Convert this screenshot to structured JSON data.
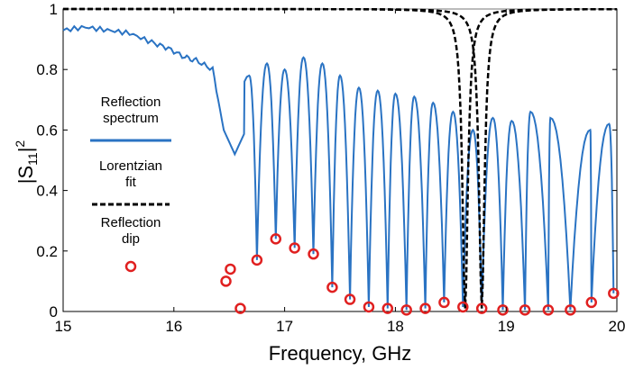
{
  "chart_data": {
    "type": "line",
    "xlabel": "Frequency, GHz",
    "ylabel": {
      "main": "|S",
      "sub": "11",
      "end": "|",
      "sup": "2"
    },
    "xlim": [
      15,
      20
    ],
    "ylim": [
      0,
      1
    ],
    "xticks": [
      "15",
      "16",
      "17",
      "18",
      "19",
      "20"
    ],
    "yticks": [
      "0",
      "0.2",
      "0.4",
      "0.6",
      "0.8",
      "1"
    ],
    "grid": false,
    "legend_position": "left",
    "colors": {
      "reflection": "#2a73c3",
      "lorentzian": "#000000",
      "dip": "#e02020"
    },
    "legend": [
      {
        "lines": [
          "Reflection",
          "spectrum"
        ],
        "style": "solid"
      },
      {
        "lines": [
          "Lorentzian",
          "fit"
        ],
        "style": "dashed"
      },
      {
        "lines": [
          "Reflection",
          "dip"
        ],
        "style": "marker"
      }
    ],
    "reflection_spectrum": {
      "baseline": [
        [
          15.0,
          0.93
        ],
        [
          15.2,
          0.94
        ],
        [
          15.4,
          0.93
        ],
        [
          15.6,
          0.92
        ],
        [
          15.8,
          0.89
        ],
        [
          15.95,
          0.87
        ],
        [
          16.1,
          0.84
        ],
        [
          16.2,
          0.83
        ],
        [
          16.35,
          0.8
        ],
        [
          16.45,
          0.6
        ],
        [
          16.55,
          0.52
        ],
        [
          16.65,
          0.6
        ]
      ],
      "peaks": [
        [
          16.3,
          0.84
        ],
        [
          16.68,
          0.78
        ],
        [
          16.84,
          0.82
        ],
        [
          17.0,
          0.8
        ],
        [
          17.17,
          0.84
        ],
        [
          17.34,
          0.82
        ],
        [
          17.5,
          0.78
        ],
        [
          17.67,
          0.74
        ],
        [
          17.84,
          0.73
        ],
        [
          18.0,
          0.72
        ],
        [
          18.17,
          0.71
        ],
        [
          18.34,
          0.69
        ],
        [
          18.52,
          0.66
        ],
        [
          18.7,
          0.6
        ],
        [
          18.88,
          0.64
        ],
        [
          19.05,
          0.63
        ],
        [
          19.22,
          0.66
        ],
        [
          19.4,
          0.64
        ],
        [
          19.58,
          0.63
        ],
        [
          19.76,
          0.6
        ],
        [
          19.93,
          0.62
        ]
      ]
    },
    "reflection_dips": {
      "x": [
        16.47,
        16.51,
        16.6,
        16.75,
        16.92,
        17.09,
        17.26,
        17.43,
        17.59,
        17.76,
        17.93,
        18.1,
        18.27,
        18.44,
        18.61,
        18.78,
        18.97,
        19.17,
        19.38,
        19.58,
        19.77,
        19.97
      ],
      "y": [
        0.1,
        0.14,
        0.01,
        0.17,
        0.24,
        0.21,
        0.19,
        0.08,
        0.04,
        0.015,
        0.01,
        0.005,
        0.01,
        0.03,
        0.015,
        0.01,
        0.005,
        0.005,
        0.005,
        0.005,
        0.03,
        0.06
      ]
    },
    "lorentzian_fits": [
      {
        "center": 18.63,
        "width": 0.06,
        "min": 0.01
      },
      {
        "center": 18.78,
        "width": 0.06,
        "min": 0.01
      }
    ]
  }
}
